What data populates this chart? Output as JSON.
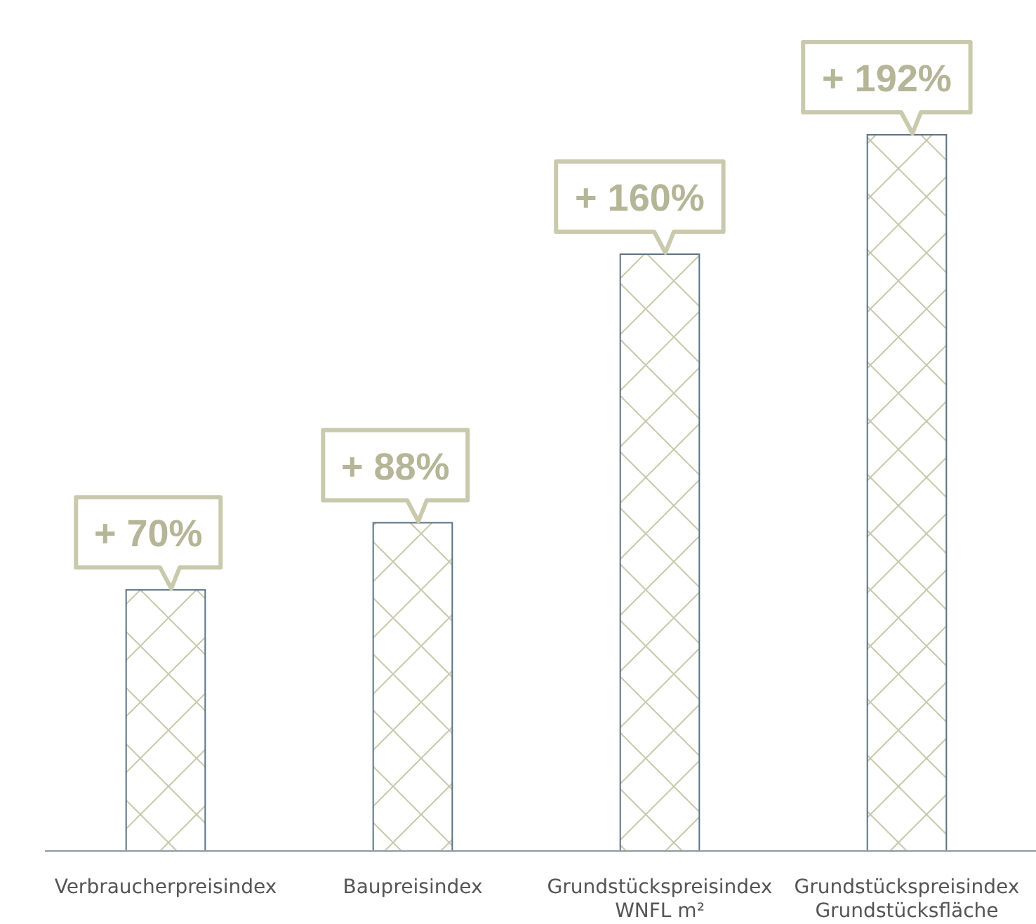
{
  "chart_data": {
    "type": "bar",
    "categories": [
      "Verbraucherpreisindex",
      "Baupreisindex",
      "Grundstückspreisindex\nWNFL m²",
      "Grundstückspreisindex\nGrundstücksfläche"
    ],
    "values": [
      70,
      88,
      160,
      192
    ],
    "value_labels": [
      "+ 70%",
      "+ 88%",
      "+ 160%",
      "+ 192%"
    ],
    "color": "#5b7384"
  }
}
